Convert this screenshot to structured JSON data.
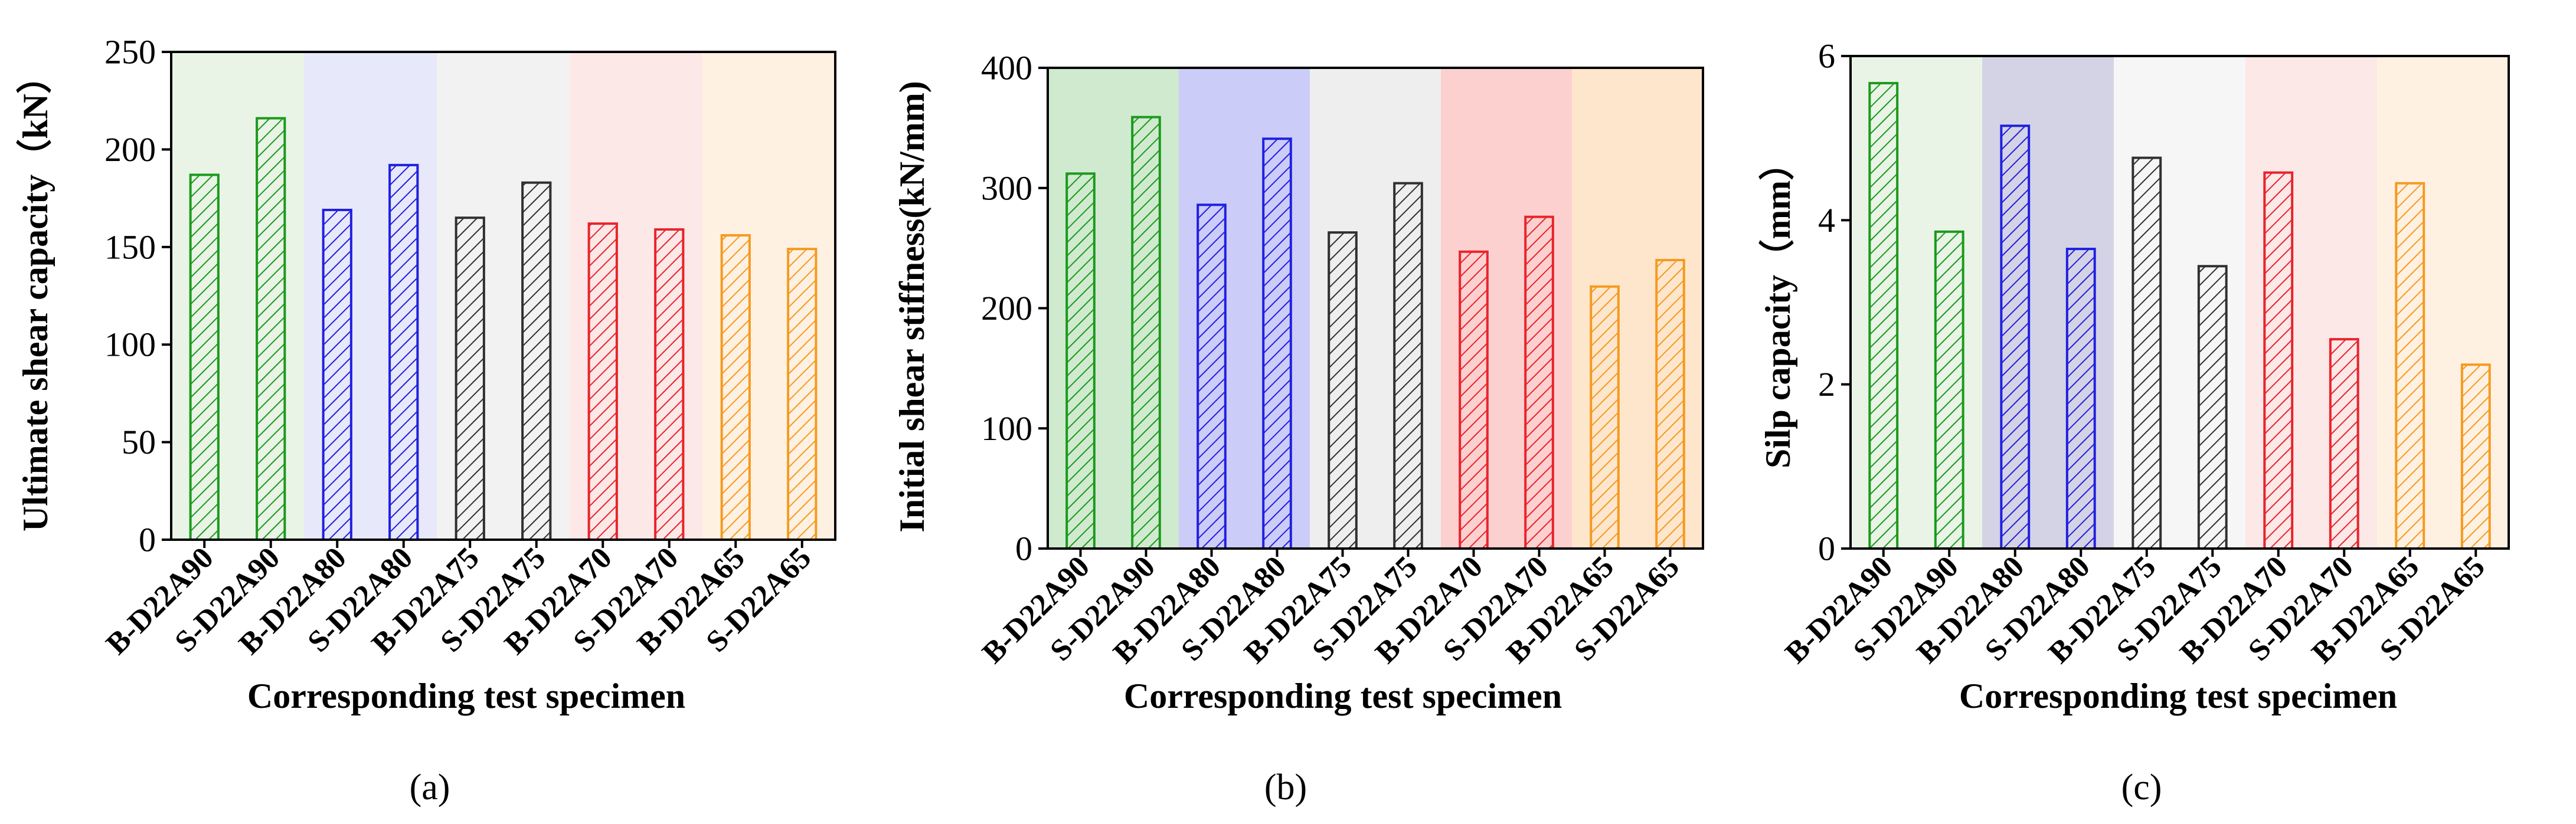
{
  "chart_data": [
    {
      "type": "bar",
      "panel_label": "(a)",
      "title": "",
      "xlabel": "Corresponding test specimen",
      "ylabel": "Ultimate shear capacity（kN）",
      "ylim": [
        0,
        250
      ],
      "yticks": [
        "0",
        "50",
        "100",
        "150",
        "200",
        "250"
      ],
      "categories": [
        "B-D22A90",
        "S-D22A90",
        "B-D22A80",
        "S-D22A80",
        "B-D22A75",
        "S-D22A75",
        "B-D22A70",
        "S-D22A70",
        "B-D22A65",
        "S-D22A65"
      ],
      "values": [
        187,
        216,
        169,
        192,
        165,
        183,
        162,
        159,
        156,
        149
      ],
      "grid": false
    },
    {
      "type": "bar",
      "panel_label": "(b)",
      "title": "",
      "xlabel": "Corresponding test specimen",
      "ylabel": "Initial shear stiffness(kN/mm)",
      "ylim": [
        0,
        400
      ],
      "yticks": [
        "0",
        "100",
        "200",
        "300",
        "400"
      ],
      "categories": [
        "B-D22A90",
        "S-D22A90",
        "B-D22A80",
        "S-D22A80",
        "B-D22A75",
        "S-D22A75",
        "B-D22A70",
        "S-D22A70",
        "B-D22A65",
        "S-D22A65"
      ],
      "values": [
        312,
        359,
        286,
        341,
        263,
        304,
        247,
        276,
        218,
        240
      ],
      "grid": false
    },
    {
      "type": "bar",
      "panel_label": "(c)",
      "title": "",
      "xlabel": "Corresponding test specimen",
      "ylabel": "Silp capacity（mm）",
      "ylim": [
        0,
        6
      ],
      "yticks": [
        "0",
        "2",
        "4",
        "6"
      ],
      "categories": [
        "B-D22A90",
        "S-D22A90",
        "B-D22A80",
        "S-D22A80",
        "B-D22A75",
        "S-D22A75",
        "B-D22A70",
        "S-D22A70",
        "B-D22A65",
        "S-D22A65"
      ],
      "values": [
        5.67,
        3.86,
        5.15,
        3.65,
        4.76,
        3.44,
        4.58,
        2.55,
        4.45,
        2.24
      ],
      "grid": false
    }
  ],
  "group_colors": [
    "#1b9a1b",
    "#2020e0",
    "#303030",
    "#e8242b",
    "#f59a20"
  ],
  "panel_backgrounds": [
    [
      "#e9f4e7",
      "#e8e8fb",
      "#f2f2f2",
      "#fde8e8",
      "#fff1e2"
    ],
    [
      "#d0ead0",
      "#ccccf9",
      "#eeeeee",
      "#fdd0d0",
      "#fde6cc"
    ],
    [
      "#e9f4e7",
      "#d4d3e6",
      "#f6f6f6",
      "#fde8e8",
      "#fff1e2"
    ]
  ]
}
